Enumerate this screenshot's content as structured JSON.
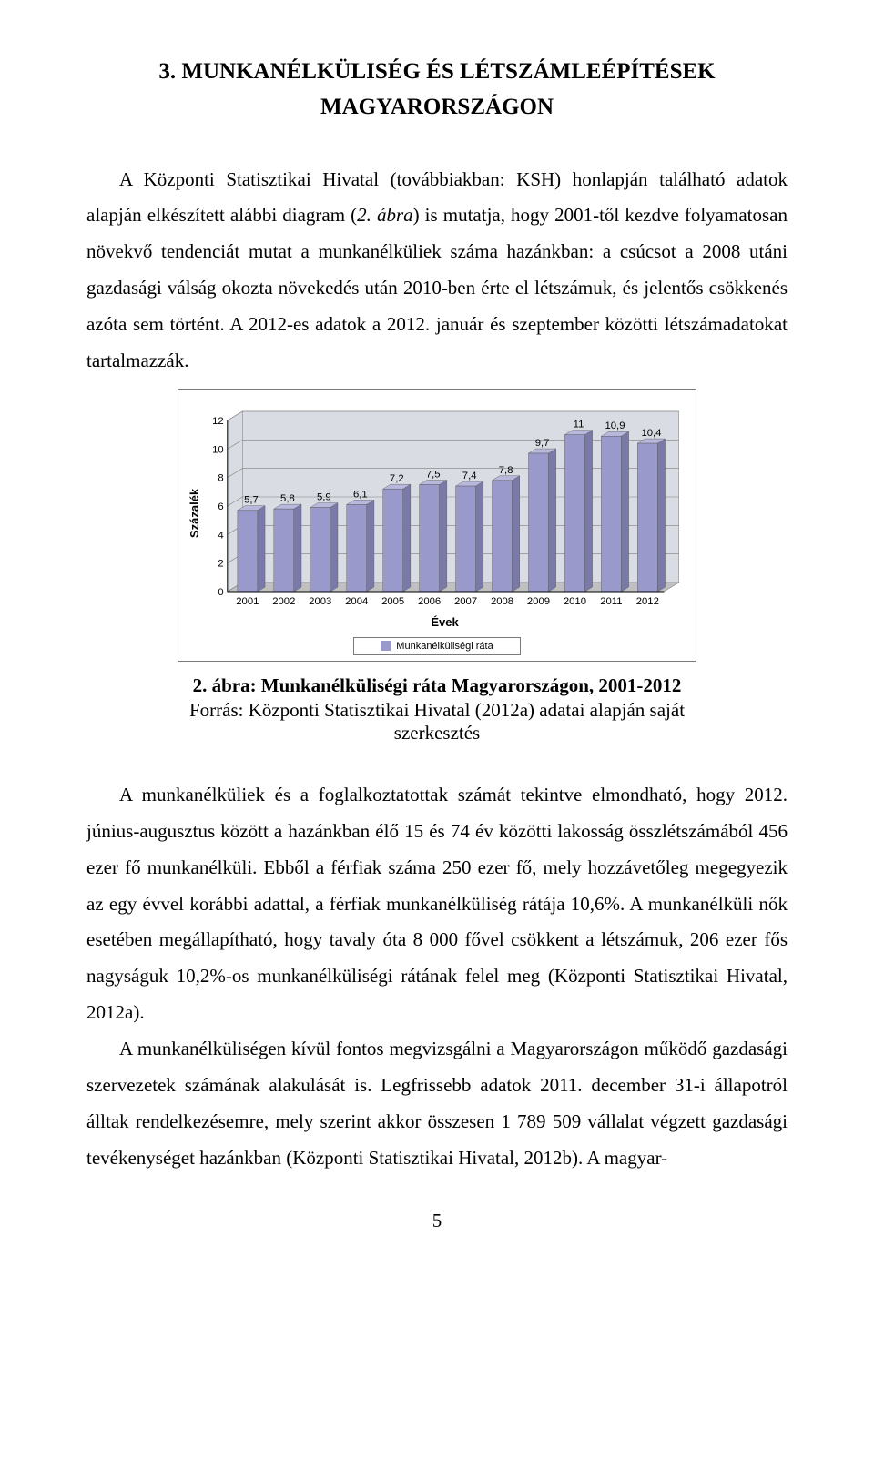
{
  "heading": {
    "line1": "3. MUNKANÉLKÜLISÉG ÉS LÉTSZÁMLEÉPÍTÉSEK",
    "line2": "MAGYARORSZÁGON"
  },
  "para1_prefix": "A Központi Statisztikai Hivatal (továbbiakban: KSH) honlapján található adatok alapján elkészített alábbi diagram (",
  "para1_italic": "2. ábra",
  "para1_suffix": ") is mutatja, hogy 2001-től kezdve folyamatosan növekvő tendenciát mutat a munkanélküliek száma hazánkban: a csúcsot a 2008 utáni gazdasági válság okozta növekedés után 2010-ben érte el létszámuk, és jelentős csökkenés azóta sem történt. A 2012-es adatok a 2012. január és szeptember közötti létszámadatokat tartalmazzák.",
  "chart": {
    "type": "bar-3d",
    "categories": [
      "2001",
      "2002",
      "2003",
      "2004",
      "2005",
      "2006",
      "2007",
      "2008",
      "2009",
      "2010",
      "2011",
      "2012"
    ],
    "values": [
      5.7,
      5.8,
      5.9,
      6.1,
      7.2,
      7.5,
      7.4,
      7.8,
      9.7,
      11,
      10.9,
      10.4
    ],
    "value_labels": [
      "5,7",
      "5,8",
      "5,9",
      "6,1",
      "7,2",
      "7,5",
      "7,4",
      "7,8",
      "9,7",
      "11",
      "10,9",
      "10,4"
    ],
    "y_ticks": [
      0,
      2,
      4,
      6,
      8,
      10,
      12
    ],
    "ylim": [
      0,
      12
    ],
    "bar_face_color": "#9999cc",
    "bar_side_color": "#7a7aa8",
    "bar_top_color": "#b8b8dd",
    "floor_color": "#c0c0c0",
    "wall_color": "#d9dce3",
    "grid_color": "#808080",
    "border_color": "#7a7a7a",
    "axis_color": "#000000",
    "y_label": "Százalék",
    "x_label": "Évek",
    "legend_label": "Munkanélküliségi ráta",
    "tick_fontsize": 11,
    "label_fontsize": 11
  },
  "fig_caption": "2. ábra: Munkanélküliségi ráta Magyarországon, 2001-2012",
  "fig_source": "Forrás: Központi Statisztikai Hivatal (2012a) adatai alapján saját szerkesztés",
  "para2": "A munkanélküliek és a foglalkoztatottak számát tekintve elmondható, hogy 2012. június-augusztus között a hazánkban élő 15 és 74 év közötti lakosság összlétszámából 456 ezer fő munkanélküli. Ebből a férfiak száma 250 ezer fő, mely hozzávetőleg megegyezik az egy évvel korábbi adattal, a férfiak munkanélküliség rátája 10,6%. A munkanélküli nők esetében megállapítható, hogy tavaly óta 8 000 fővel csökkent a létszámuk, 206 ezer fős nagyságuk 10,2%-os munkanélküliségi rátának felel meg (Központi Statisztikai Hivatal, 2012a).",
  "para3": "A munkanélküliségen kívül fontos megvizsgálni a Magyarországon működő gazdasági szervezetek számának alakulását is. Legfrissebb adatok 2011. december 31-i állapotról álltak rendelkezésemre, mely szerint akkor összesen 1 789 509 vállalat végzett gazdasági tevékenységet hazánkban (Központi Statisztikai Hivatal, 2012b). A magyar-",
  "page_number": "5"
}
